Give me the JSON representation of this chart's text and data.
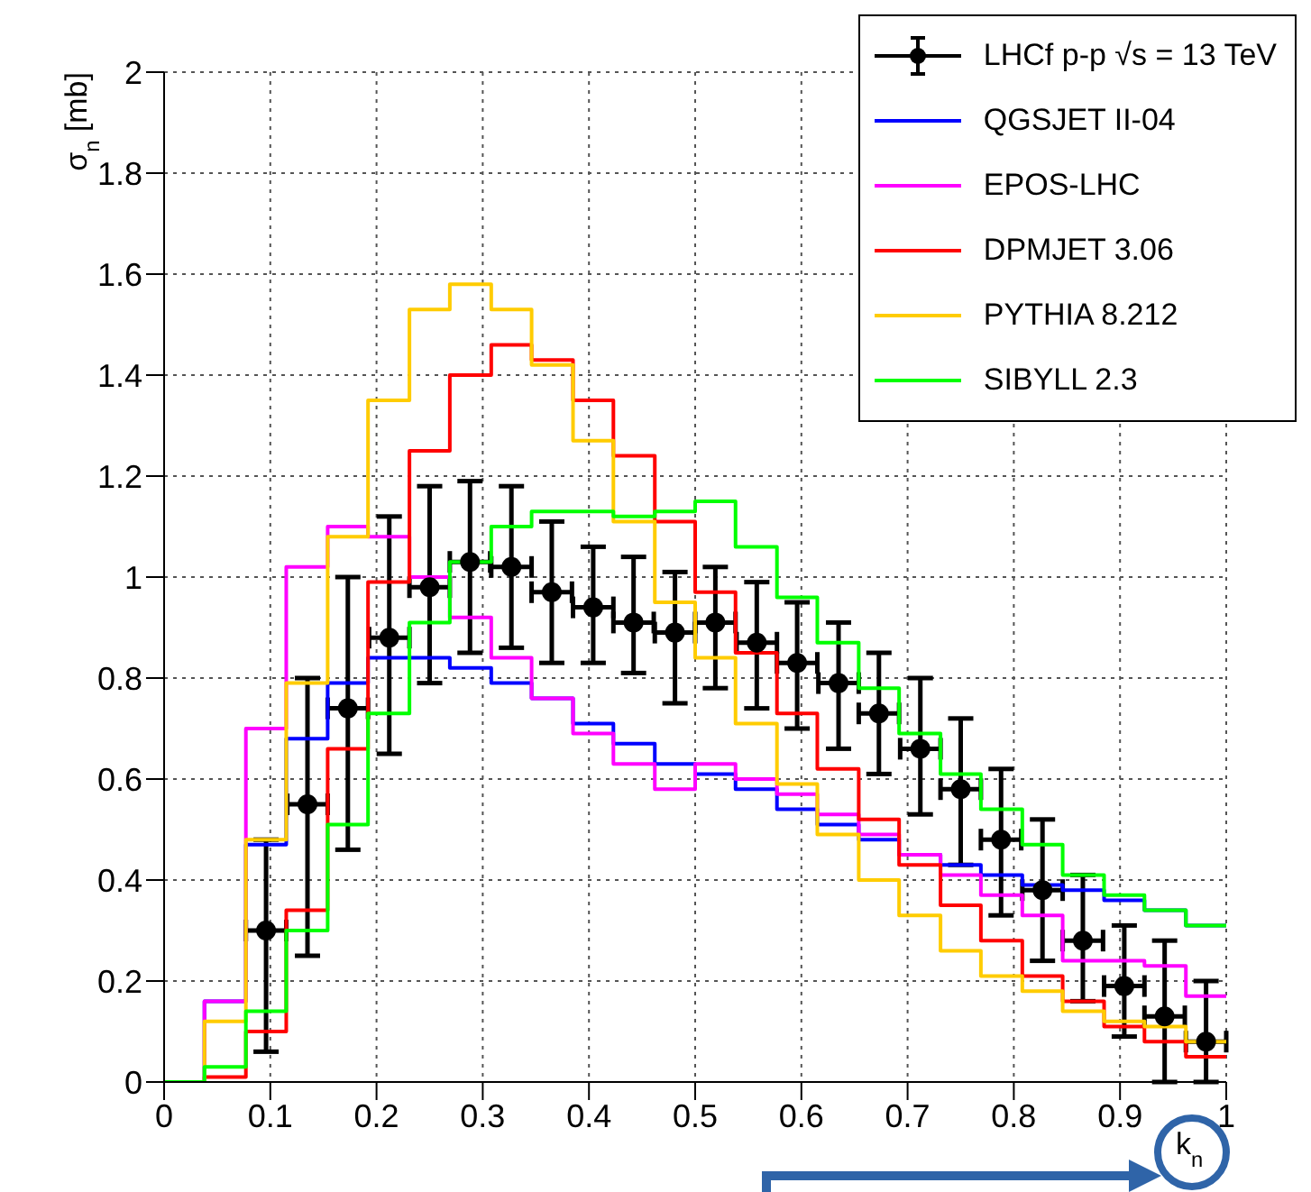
{
  "chart_data": {
    "type": "histogram",
    "xlabel": "k$_{n}$",
    "ylabel": "σ$_{n}$ [mb]",
    "bins": [
      0,
      0.038,
      0.077,
      0.115,
      0.154,
      0.192,
      0.231,
      0.269,
      0.308,
      0.346,
      0.385,
      0.423,
      0.462,
      0.5,
      0.538,
      0.577,
      0.615,
      0.654,
      0.692,
      0.731,
      0.769,
      0.808,
      0.846,
      0.885,
      0.923,
      0.962,
      1
    ],
    "series": [
      {
        "name": "LHCf p-p √s = 13 TeV",
        "type": "scatter",
        "color": "#000000",
        "marker": "circle",
        "x": [
          0.096,
          0.135,
          0.173,
          0.212,
          0.25,
          0.288,
          0.327,
          0.365,
          0.404,
          0.442,
          0.481,
          0.519,
          0.558,
          0.596,
          0.635,
          0.673,
          0.712,
          0.75,
          0.788,
          0.827,
          0.865,
          0.904,
          0.942,
          0.981
        ],
        "values": [
          0.3,
          0.55,
          0.74,
          0.88,
          0.98,
          1.03,
          1.02,
          0.97,
          0.94,
          0.91,
          0.89,
          0.91,
          0.87,
          0.83,
          0.79,
          0.73,
          0.66,
          0.58,
          0.48,
          0.38,
          0.28,
          0.19,
          0.13,
          0.08
        ],
        "errors": [
          [
            0.06,
            0.48
          ],
          [
            0.25,
            0.8
          ],
          [
            0.46,
            1.0
          ],
          [
            0.65,
            1.12
          ],
          [
            0.79,
            1.18
          ],
          [
            0.85,
            1.19
          ],
          [
            0.86,
            1.18
          ],
          [
            0.83,
            1.11
          ],
          [
            0.83,
            1.06
          ],
          [
            0.81,
            1.04
          ],
          [
            0.75,
            1.01
          ],
          [
            0.78,
            1.02
          ],
          [
            0.74,
            0.99
          ],
          [
            0.7,
            0.95
          ],
          [
            0.66,
            0.91
          ],
          [
            0.61,
            0.85
          ],
          [
            0.53,
            0.8
          ],
          [
            0.43,
            0.72
          ],
          [
            0.33,
            0.62
          ],
          [
            0.24,
            0.52
          ],
          [
            0.16,
            0.41
          ],
          [
            0.09,
            0.31
          ],
          [
            0,
            0.28
          ],
          [
            0,
            0.2
          ]
        ],
        "xerrors": [
          0.019,
          0.019,
          0.019,
          0.019,
          0.019,
          0.019,
          0.019,
          0.019,
          0.019,
          0.019,
          0.019,
          0.019,
          0.019,
          0.019,
          0.019,
          0.019,
          0.019,
          0.019,
          0.019,
          0.019,
          0.019,
          0.019,
          0.019,
          0.019
        ]
      },
      {
        "name": "QGSJET II-04",
        "color": "#0000ff",
        "values": [
          0,
          0.16,
          0.47,
          0.68,
          0.79,
          0.84,
          0.84,
          0.82,
          0.79,
          0.76,
          0.71,
          0.67,
          0.63,
          0.61,
          0.58,
          0.54,
          0.51,
          0.48,
          0.45,
          0.43,
          0.41,
          0.39,
          0.38,
          0.36,
          0.34,
          0.31
        ]
      },
      {
        "name": "EPOS-LHC",
        "color": "#ff00ff",
        "values": [
          0,
          0.16,
          0.7,
          1.02,
          1.1,
          1.08,
          1.0,
          0.92,
          0.84,
          0.76,
          0.69,
          0.63,
          0.58,
          0.63,
          0.6,
          0.57,
          0.53,
          0.49,
          0.45,
          0.41,
          0.37,
          0.33,
          0.24,
          0.24,
          0.23,
          0.17
        ]
      },
      {
        "name": "DPMJET 3.06",
        "color": "#ff0000",
        "values": [
          0,
          0.01,
          0.1,
          0.34,
          0.66,
          0.99,
          1.25,
          1.4,
          1.46,
          1.43,
          1.35,
          1.24,
          1.11,
          0.97,
          0.85,
          0.73,
          0.62,
          0.52,
          0.43,
          0.35,
          0.28,
          0.21,
          0.16,
          0.11,
          0.08,
          0.05
        ]
      },
      {
        "name": "PYTHIA 8.212",
        "color": "#ffcc00",
        "values": [
          0,
          0.12,
          0.48,
          0.79,
          1.08,
          1.35,
          1.53,
          1.58,
          1.53,
          1.42,
          1.27,
          1.11,
          0.95,
          0.84,
          0.71,
          0.59,
          0.49,
          0.4,
          0.33,
          0.26,
          0.21,
          0.18,
          0.14,
          0.12,
          0.11,
          0.08
        ]
      },
      {
        "name": "SIBYLL 2.3",
        "color": "#00ff00",
        "values": [
          0,
          0.03,
          0.14,
          0.3,
          0.51,
          0.73,
          0.91,
          1.03,
          1.1,
          1.13,
          1.13,
          1.12,
          1.13,
          1.15,
          1.06,
          0.96,
          0.87,
          0.78,
          0.69,
          0.61,
          0.54,
          0.47,
          0.41,
          0.37,
          0.34,
          0.31
        ]
      }
    ],
    "xlim": [
      0,
      1
    ],
    "xticks": [
      0,
      0.1,
      0.2,
      0.3,
      0.4,
      0.5,
      0.6,
      0.7,
      0.8,
      0.9,
      1
    ],
    "ylim": [
      0,
      2
    ],
    "yticks": [
      0,
      0.2,
      0.4,
      0.6,
      0.8,
      1,
      1.2,
      1.4,
      1.6,
      1.8,
      2
    ],
    "grid": true,
    "legend": "top right"
  }
}
